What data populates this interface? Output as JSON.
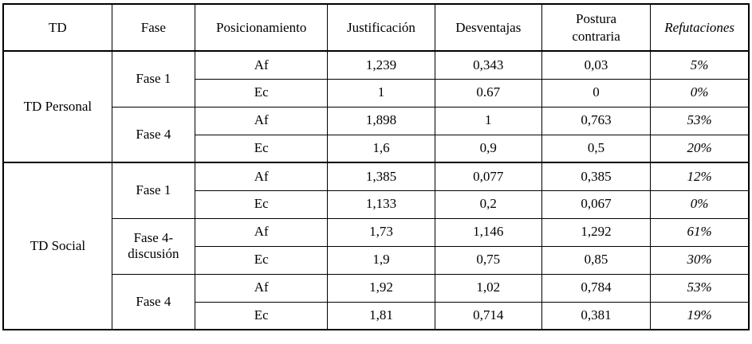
{
  "colors": {
    "background": "#ffffff",
    "text": "#000000",
    "border": "#000000"
  },
  "table": {
    "columns": [
      "TD",
      "Fase",
      "Posicionamiento",
      "Justificación",
      "Desventajas",
      "Postura contraria",
      "Refutaciones"
    ],
    "italic_column_indexes": [
      6
    ],
    "sections": [
      {
        "td": "TD Personal",
        "groups": [
          {
            "fase": "Fase 1",
            "rows": [
              [
                "Af",
                "1,239",
                "0,343",
                "0,03",
                "5%"
              ],
              [
                "Ec",
                "1",
                "0.67",
                "0",
                "0%"
              ]
            ]
          },
          {
            "fase": "Fase 4",
            "rows": [
              [
                "Af",
                "1,898",
                "1",
                "0,763",
                "53%"
              ],
              [
                "Ec",
                "1,6",
                "0,9",
                "0,5",
                "20%"
              ]
            ]
          }
        ]
      },
      {
        "td": "TD Social",
        "groups": [
          {
            "fase": "Fase 1",
            "rows": [
              [
                "Af",
                "1,385",
                "0,077",
                "0,385",
                "12%"
              ],
              [
                "Ec",
                "1,133",
                "0,2",
                "0,067",
                "0%"
              ]
            ]
          },
          {
            "fase": "Fase 4-discusión",
            "rows": [
              [
                "Af",
                "1,73",
                "1,146",
                "1,292",
                "61%"
              ],
              [
                "Ec",
                "1,9",
                "0,75",
                "0,85",
                "30%"
              ]
            ]
          },
          {
            "fase": "Fase 4",
            "rows": [
              [
                "Af",
                "1,92",
                "1,02",
                "0,784",
                "53%"
              ],
              [
                "Ec",
                "1,81",
                "0,714",
                "0,381",
                "19%"
              ]
            ]
          }
        ]
      }
    ]
  }
}
